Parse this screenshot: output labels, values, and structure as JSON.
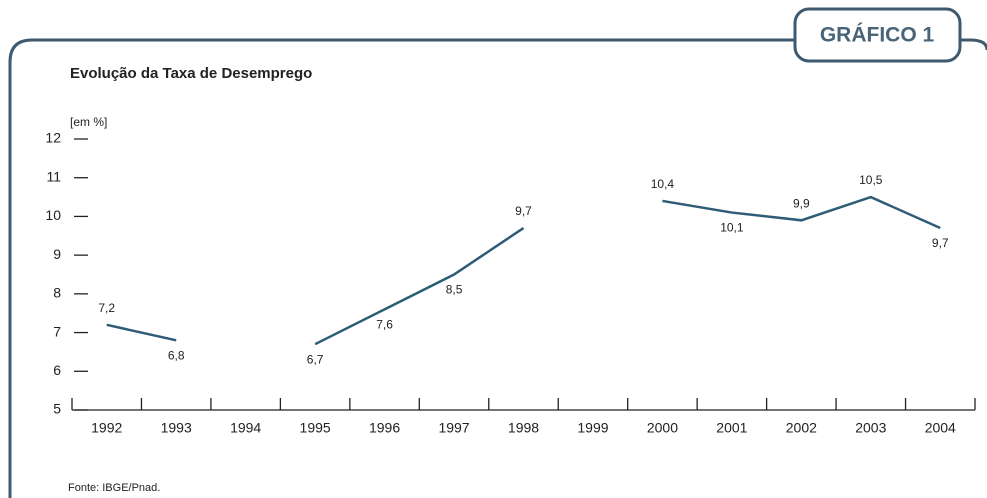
{
  "chart_data": {
    "type": "line",
    "badge": "GRÁFICO 1",
    "title": "Evolução da Taxa de Desemprego",
    "y_label": "[em %]",
    "source": "Fonte: IBGE/Pnad.",
    "categories": [
      "1992",
      "1993",
      "1994",
      "1995",
      "1996",
      "1997",
      "1998",
      "1999",
      "2000",
      "2001",
      "2002",
      "2003",
      "2004"
    ],
    "series": [
      {
        "color": "#2e5b76",
        "values": [
          7.2,
          6.8,
          null,
          6.7,
          7.6,
          8.5,
          9.7,
          null,
          10.4,
          10.1,
          9.9,
          10.5,
          9.7
        ],
        "value_labels": [
          "7,2",
          "6,8",
          null,
          "6,7",
          "7,6",
          "8,5",
          "9,7",
          null,
          "10,4",
          "10,1",
          "9,9",
          "10,5",
          "9,7"
        ]
      }
    ],
    "ylim": [
      5,
      12
    ],
    "yticks": [
      5,
      6,
      7,
      8,
      9,
      10,
      11,
      12
    ]
  }
}
